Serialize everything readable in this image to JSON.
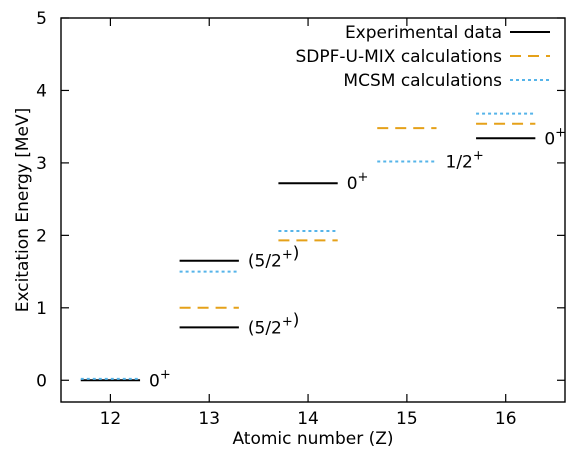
{
  "chart_data": {
    "type": "scatter",
    "xlabel": "Atomic number (Z)",
    "ylabel": "Excitation Energy [MeV]",
    "xlim": [
      11.5,
      16.6
    ],
    "ylim": [
      -0.3,
      5
    ],
    "xticks": [
      "12",
      "13",
      "14",
      "15",
      "16"
    ],
    "yticks": [
      "0",
      "1",
      "2",
      "3",
      "4",
      "5"
    ],
    "grid": false,
    "legend_position": "top-right",
    "series": [
      {
        "name": "Experimental data",
        "style": "solid",
        "color": "#000000",
        "points": [
          {
            "z": 12,
            "energy": 0.0
          },
          {
            "z": 13,
            "energy": 0.73
          },
          {
            "z": 13,
            "energy": 1.65
          },
          {
            "z": 14,
            "energy": 2.72
          },
          {
            "z": 16,
            "energy": 3.34
          }
        ]
      },
      {
        "name": "SDPF-U-MIX calculations",
        "style": "dashed",
        "color": "#e5a119",
        "points": [
          {
            "z": 13,
            "energy": 1.0
          },
          {
            "z": 14,
            "energy": 1.93
          },
          {
            "z": 15,
            "energy": 3.48
          },
          {
            "z": 16,
            "energy": 3.54
          }
        ]
      },
      {
        "name": "MCSM calculations",
        "style": "dotted",
        "color": "#56b4e9",
        "points": [
          {
            "z": 12,
            "energy": 0.02
          },
          {
            "z": 13,
            "energy": 1.5
          },
          {
            "z": 14,
            "energy": 2.06
          },
          {
            "z": 15,
            "energy": 3.02
          },
          {
            "z": 16,
            "energy": 3.68
          }
        ]
      }
    ],
    "annotations": [
      {
        "text": "0+",
        "z": 12,
        "energy": 0.0
      },
      {
        "text": "(5/2+)",
        "z": 13,
        "energy": 0.73
      },
      {
        "text": "(5/2+)",
        "z": 13,
        "energy": 1.65
      },
      {
        "text": "0+",
        "z": 14,
        "energy": 2.72
      },
      {
        "text": "1/2+",
        "z": 15,
        "energy": 3.02
      },
      {
        "text": "0+",
        "z": 16,
        "energy": 3.34
      }
    ]
  }
}
